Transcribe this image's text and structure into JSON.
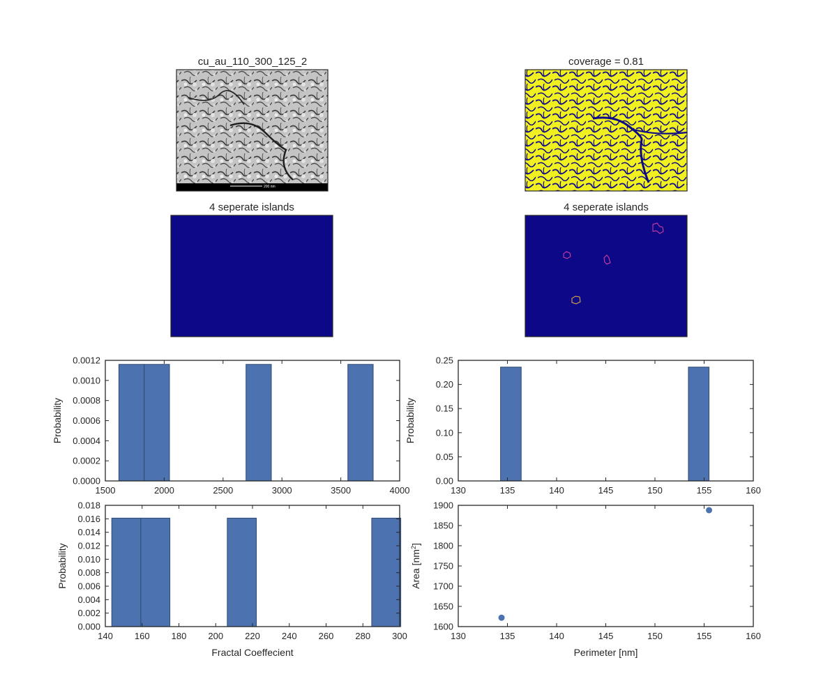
{
  "figure": {
    "image_panels": [
      {
        "title": "cu_au_110_300_125_2",
        "kind": "sem_micrograph",
        "scale_bar_text": "200 nm"
      },
      {
        "title": "coverage = 0.81",
        "kind": "binary_mask"
      },
      {
        "title": "4 seperate islands",
        "kind": "empty_label_map"
      },
      {
        "title": "4 seperate islands",
        "kind": "island_contours"
      }
    ]
  },
  "colors": {
    "bar_fill": "#4c72b0",
    "bar_edge": "#2f4a73",
    "scatter_point": "#4c72b0",
    "mask_foreground": "#f0f020",
    "mask_background": "#0d0887",
    "contour_outline": "#e040a0",
    "axes_edge": "#262626",
    "text": "#262626"
  },
  "chart_data": [
    {
      "type": "bar",
      "title": "",
      "xlabel": "",
      "ylabel": "Probability",
      "xlim": [
        1500,
        4000
      ],
      "ylim": [
        0,
        0.0012
      ],
      "xticks": [
        "1500",
        "2000",
        "2500",
        "3000",
        "3500",
        "4000"
      ],
      "yticks": [
        "0.0000",
        "0.0002",
        "0.0004",
        "0.0006",
        "0.0008",
        "0.0010",
        "0.0012"
      ],
      "bins": [
        {
          "x0": 1615,
          "x1": 1830,
          "value": 0.00116
        },
        {
          "x0": 1830,
          "x1": 2045,
          "value": 0.00116
        },
        {
          "x0": 2695,
          "x1": 2910,
          "value": 0.00116
        },
        {
          "x0": 3560,
          "x1": 3775,
          "value": 0.00116
        }
      ],
      "grid": false
    },
    {
      "type": "bar",
      "title": "",
      "xlabel": "",
      "ylabel": "Probability",
      "xlim": [
        130,
        160
      ],
      "ylim": [
        0,
        0.25
      ],
      "xticks": [
        "130",
        "135",
        "140",
        "145",
        "150",
        "155",
        "160"
      ],
      "yticks": [
        "0.00",
        "0.05",
        "0.10",
        "0.15",
        "0.20",
        "0.25"
      ],
      "bins": [
        {
          "x0": 134.3,
          "x1": 136.4,
          "value": 0.236
        },
        {
          "x0": 153.4,
          "x1": 155.5,
          "value": 0.236
        }
      ],
      "grid": false
    },
    {
      "type": "bar",
      "title": "",
      "xlabel": "Fractal Coeffecient",
      "ylabel": "Probability",
      "xlim": [
        140,
        300
      ],
      "ylim": [
        0,
        0.018
      ],
      "xticks": [
        "140",
        "160",
        "180",
        "200",
        "220",
        "240",
        "260",
        "280",
        "300"
      ],
      "yticks": [
        "0.000",
        "0.002",
        "0.004",
        "0.006",
        "0.008",
        "0.010",
        "0.012",
        "0.014",
        "0.016",
        "0.018"
      ],
      "bins": [
        {
          "x0": 143.5,
          "x1": 159.3,
          "value": 0.0161
        },
        {
          "x0": 159.3,
          "x1": 175.1,
          "value": 0.0161
        },
        {
          "x0": 206.3,
          "x1": 222.1,
          "value": 0.0161
        },
        {
          "x0": 284.8,
          "x1": 300.6,
          "value": 0.0161
        }
      ],
      "grid": false
    },
    {
      "type": "scatter",
      "title": "",
      "xlabel": "Perimeter [nm]",
      "ylabel": "Area [nm",
      "ylabel_sup": "2",
      "ylabel_end": "]",
      "xlim": [
        130,
        160
      ],
      "ylim": [
        1600,
        1900
      ],
      "xticks": [
        "130",
        "135",
        "140",
        "145",
        "150",
        "155",
        "160"
      ],
      "yticks": [
        "1600",
        "1650",
        "1700",
        "1750",
        "1800",
        "1850",
        "1900"
      ],
      "points": [
        {
          "x": 134.4,
          "y": 1622
        },
        {
          "x": 155.5,
          "y": 1888
        }
      ],
      "grid": false
    }
  ]
}
